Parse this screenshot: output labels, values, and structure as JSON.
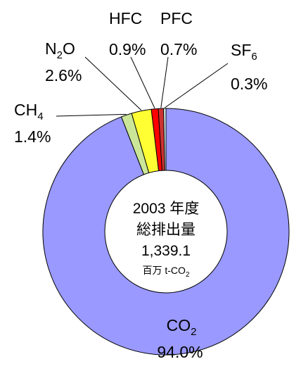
{
  "chart_data": {
    "type": "pie",
    "style": "donut",
    "start": "top, clockwise",
    "slices": [
      {
        "name": "CO₂",
        "label": "CO",
        "sub": "2",
        "value": 94.0,
        "display": "94.0%",
        "color": "#9999ff"
      },
      {
        "name": "CH₄",
        "label": "CH",
        "sub": "4",
        "value": 1.4,
        "display": "1.4%",
        "color": "#cce699"
      },
      {
        "name": "N₂O",
        "label": "N",
        "sub": "2",
        "label_after": "O",
        "value": 2.6,
        "display": "2.6%",
        "color": "#ffff33"
      },
      {
        "name": "HFC",
        "label": "HFC",
        "sub": "",
        "value": 0.9,
        "display": "0.9%",
        "color": "#ff0000"
      },
      {
        "name": "PFC",
        "label": "PFC",
        "sub": "",
        "value": 0.7,
        "display": "0.7%",
        "color": "#cc3333"
      },
      {
        "name": "SF₆",
        "label": "SF",
        "sub": "6",
        "value": 0.3,
        "display": "0.3%",
        "color": "#e6ffff"
      }
    ],
    "center": {
      "line1": "2003 年度",
      "line2": "総排出量",
      "line3": "1,339.1",
      "unit_main": "百万 t-CO",
      "unit_sub": "2"
    }
  }
}
